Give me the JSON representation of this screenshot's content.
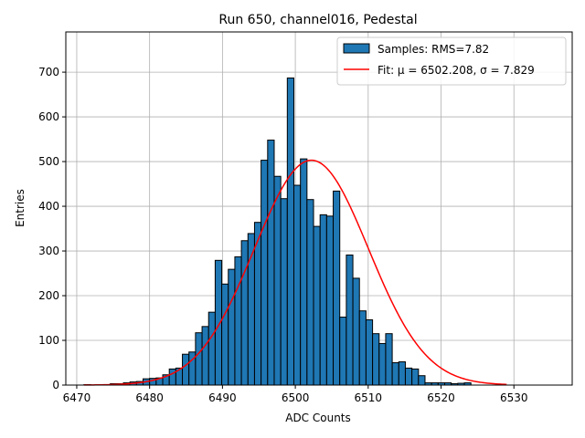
{
  "chart_data": {
    "type": "bar",
    "title": "Run 650, channel016, Pedestal",
    "xlabel": "ADC Counts",
    "ylabel": "Entries",
    "xlim": [
      6468.5,
      6538
    ],
    "ylim": [
      0,
      790
    ],
    "x_ticks": [
      6470,
      6480,
      6490,
      6500,
      6510,
      6520,
      6530
    ],
    "y_ticks": [
      0,
      100,
      200,
      300,
      400,
      500,
      600,
      700
    ],
    "grid": true,
    "legend_position": "top-right",
    "bins": {
      "start": 6471,
      "width": 0.9,
      "counts": [
        1,
        0,
        1,
        1,
        3,
        3,
        5,
        7,
        8,
        14,
        15,
        16,
        23,
        36,
        38,
        69,
        74,
        117,
        131,
        163,
        279,
        226,
        259,
        287,
        323,
        339,
        364,
        503,
        548,
        467,
        417,
        687,
        447,
        506,
        415,
        355,
        381,
        378,
        434,
        152,
        291,
        239,
        166,
        146,
        115,
        93,
        115,
        50,
        52,
        38,
        36,
        21,
        5,
        5,
        5,
        5,
        3,
        4,
        5
      ]
    },
    "fit_curve": {
      "mu": 6502.208,
      "sigma": 7.829,
      "amplitude": 503,
      "x_range": [
        6471,
        6529
      ],
      "color": "#ff0000"
    },
    "series": [
      {
        "name": "Samples: RMS=7.82",
        "color": "#1f77b4",
        "kind": "histogram"
      },
      {
        "name": "Fit: μ = 6502.208, σ = 7.829",
        "color": "#ff0000",
        "kind": "line"
      }
    ]
  }
}
